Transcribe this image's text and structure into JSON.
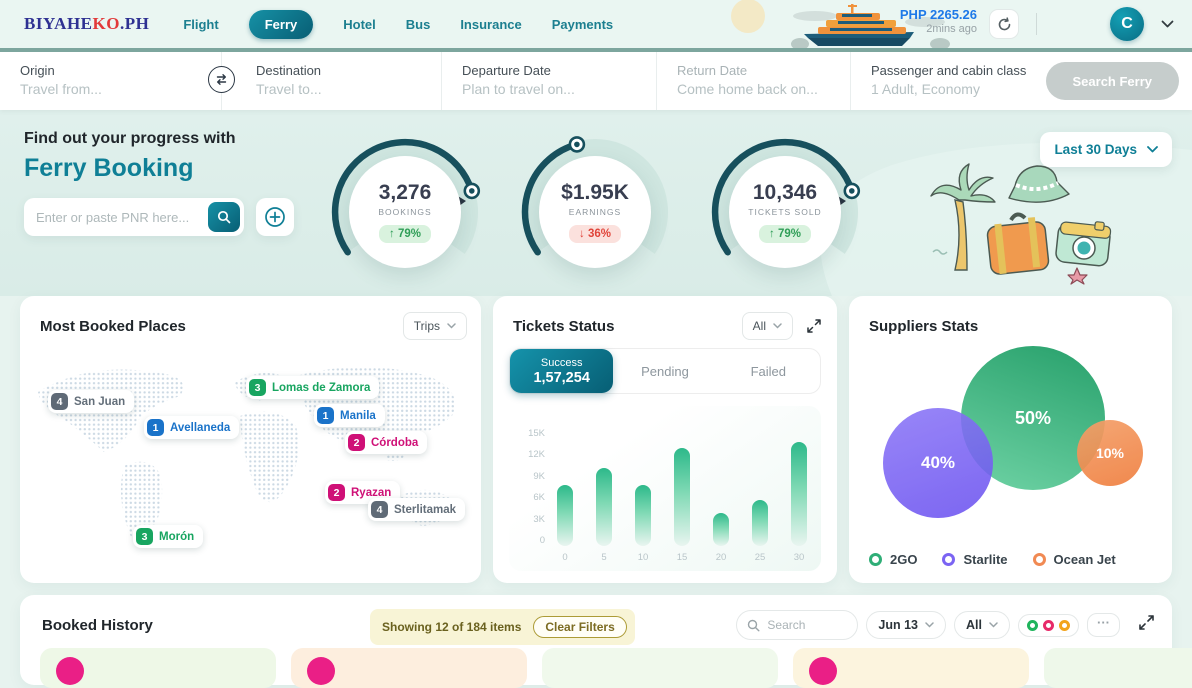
{
  "colors": {
    "accent_teal": "#0f7f96",
    "header_bg": "#eaf6f2",
    "balance_blue": "#1e79e8",
    "green": "#2fae77",
    "purple": "#7b64f3",
    "orange": "#f18a53",
    "pink": "#cf1077",
    "blue": "#1a73c9"
  },
  "header": {
    "logo": {
      "part1": "BIYAHE",
      "part2": "KO",
      "part3": ".PH"
    },
    "nav": [
      {
        "label": "Flight",
        "active": false
      },
      {
        "label": "Ferry",
        "active": true
      },
      {
        "label": "Hotel",
        "active": false
      },
      {
        "label": "Bus",
        "active": false
      },
      {
        "label": "Insurance",
        "active": false
      },
      {
        "label": "Payments",
        "active": false
      }
    ],
    "balance": {
      "amount": "PHP 2265.26",
      "updated": "2mins ago"
    },
    "avatar_initial": "C"
  },
  "search_bar": {
    "origin": {
      "label": "Origin",
      "placeholder": "Travel from..."
    },
    "destination": {
      "label": "Destination",
      "placeholder": "Travel to..."
    },
    "departure": {
      "label": "Departure Date",
      "placeholder": "Plan to travel on..."
    },
    "return": {
      "label": "Return Date",
      "placeholder": "Come home back on..."
    },
    "passenger": {
      "label": "Passenger and cabin class",
      "value": "1 Adult, Economy"
    },
    "search_button": "Search Ferry"
  },
  "hero": {
    "title_line1": "Find out your progress with",
    "title_line2": "Ferry Booking",
    "pnr_placeholder": "Enter or paste PNR here...",
    "period_filter": "Last 30 Days",
    "gauges": [
      {
        "value": "3,276",
        "label": "BOOKINGS",
        "change_label": "↑ 79%",
        "trend": "up",
        "percent": 79
      },
      {
        "value": "$1.95K",
        "label": "EARNINGS",
        "change_label": "↓ 36%",
        "trend": "down",
        "percent": 36
      },
      {
        "value": "10,346",
        "label": "TICKETS SOLD",
        "change_label": "↑ 79%",
        "trend": "up",
        "percent": 79
      }
    ]
  },
  "most_booked": {
    "title": "Most Booked Places",
    "filter": "Trips",
    "places": [
      {
        "rank": "4",
        "name": "San Juan",
        "color": "gray"
      },
      {
        "rank": "1",
        "name": "Avellaneda",
        "color": "blue"
      },
      {
        "rank": "3",
        "name": "Lomas de Zamora",
        "color": "green"
      },
      {
        "rank": "1",
        "name": "Manila",
        "color": "blue"
      },
      {
        "rank": "2",
        "name": "Córdoba",
        "color": "pink"
      },
      {
        "rank": "2",
        "name": "Ryazan",
        "color": "pink"
      },
      {
        "rank": "4",
        "name": "Sterlitamak",
        "color": "gray"
      },
      {
        "rank": "3",
        "name": "Morón",
        "color": "green"
      }
    ]
  },
  "tickets_status": {
    "title": "Tickets Status",
    "filter": "All",
    "tabs": [
      {
        "label": "Success",
        "count": "1,57,254",
        "active": true
      },
      {
        "label": "Pending",
        "active": false
      },
      {
        "label": "Failed",
        "active": false
      }
    ],
    "chart_data": {
      "type": "bar",
      "x": [
        "0",
        "5",
        "10",
        "15",
        "20",
        "25",
        "30"
      ],
      "values": [
        7000,
        9000,
        7000,
        11300,
        3800,
        5300,
        12000
      ],
      "y_ticks": [
        "15K",
        "12K",
        "9K",
        "6K",
        "3K",
        "0"
      ],
      "ylim": [
        0,
        15000
      ],
      "grid": false
    }
  },
  "suppliers": {
    "title": "Suppliers Stats",
    "chart_data": {
      "type": "bubble",
      "series": [
        {
          "name": "2GO",
          "percent": 50,
          "label": "50%",
          "color": "#2fae77"
        },
        {
          "name": "Starlite",
          "percent": 40,
          "label": "40%",
          "color": "#7b64f3"
        },
        {
          "name": "Ocean Jet",
          "percent": 10,
          "label": "10%",
          "color": "#f18a53"
        }
      ],
      "legend_position": "bottom"
    }
  },
  "booked_history": {
    "title": "Booked History",
    "showing_text": "Showing 12 of 184 items",
    "clear_filters": "Clear Filters",
    "search_placeholder": "Search",
    "date_filter": "Jun 13",
    "status_filter": "All",
    "more_label": "···"
  }
}
